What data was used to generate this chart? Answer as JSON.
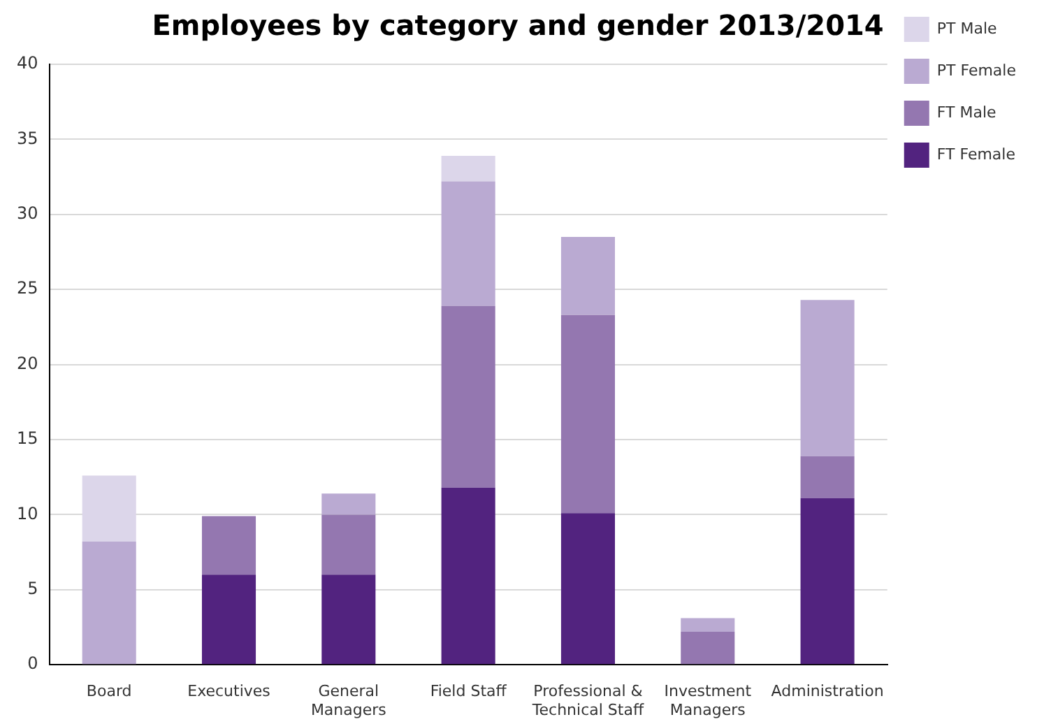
{
  "chart_data": {
    "type": "bar",
    "title": "Employees by category and gender 2013/2014",
    "stacked": true,
    "grid": "y",
    "legend": "right",
    "categories": [
      "Board",
      "Executives",
      "General Managers",
      "Field Staff",
      "Professional & Technical Staff",
      "Investment Managers",
      "Administration"
    ],
    "series": [
      {
        "name": "FT Female",
        "color": "#52237f",
        "values": [
          0,
          6.0,
          6.0,
          11.8,
          10.1,
          0,
          11.1
        ]
      },
      {
        "name": "FT Male",
        "color": "#9477b0",
        "values": [
          0,
          3.9,
          4.0,
          12.1,
          13.2,
          2.2,
          2.8
        ]
      },
      {
        "name": "PT Female",
        "color": "#baaad2",
        "values": [
          8.2,
          0,
          1.4,
          8.3,
          5.2,
          0.9,
          10.4
        ]
      },
      {
        "name": "PT Male",
        "color": "#dcd6ea",
        "values": [
          4.4,
          0,
          0,
          1.7,
          0,
          0,
          0
        ]
      }
    ],
    "ylim": [
      0,
      40
    ],
    "yticks": [
      0,
      5,
      10,
      15,
      20,
      25,
      30,
      35,
      40
    ]
  }
}
